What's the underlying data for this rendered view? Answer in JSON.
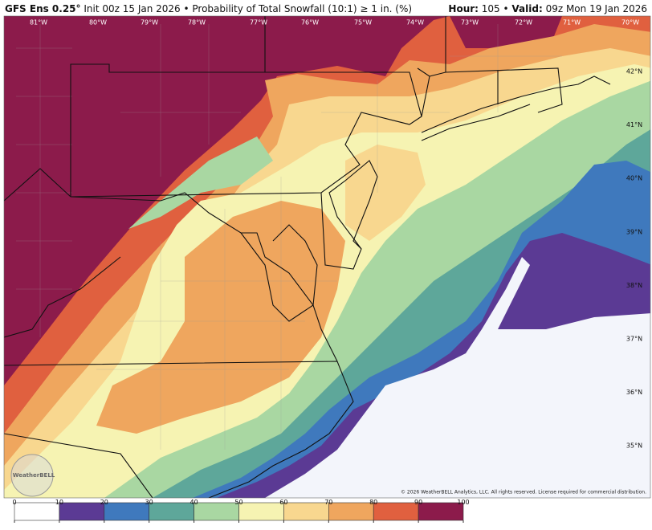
{
  "header": {
    "left": [
      {
        "text": "GFS Ens 0.25°",
        "bold": true
      },
      {
        "text": " Init 00z 15 Jan 2026 • Probability of Total Snowfall (10:1) ≥ 1 in. (%)",
        "bold": false
      }
    ],
    "right": [
      {
        "text": "Hour:",
        "bold": true
      },
      {
        "text": " 105 • ",
        "bold": false
      },
      {
        "text": "Valid:",
        "bold": true
      },
      {
        "text": " 09z Mon 19 Jan 2026",
        "bold": false
      }
    ]
  },
  "map": {
    "lon_labels": [
      "81°W",
      "80°W",
      "79°W",
      "78°W",
      "77°W",
      "76°W",
      "75°W",
      "74°W",
      "73°W",
      "72°W",
      "71°W",
      "70°W"
    ],
    "lat_labels": [
      "42°N",
      "41°N",
      "40°N",
      "39°N",
      "38°N",
      "37°N",
      "36°N",
      "35°N"
    ],
    "logo": "WeatherBELL",
    "copyright": "© 2026 WeatherBELL Analytics, LLC. All rights reserved. License required for commercial distribution."
  },
  "colorbar": {
    "ticks": [
      0,
      10,
      20,
      30,
      40,
      50,
      60,
      70,
      80,
      90,
      100
    ],
    "colors": [
      "#ffffff",
      "#5b3a94",
      "#3f79bd",
      "#5ea79a",
      "#a9d7a2",
      "#f6f3b2",
      "#f8d78f",
      "#efa65e",
      "#e0603f",
      "#8c1b4b"
    ]
  }
}
